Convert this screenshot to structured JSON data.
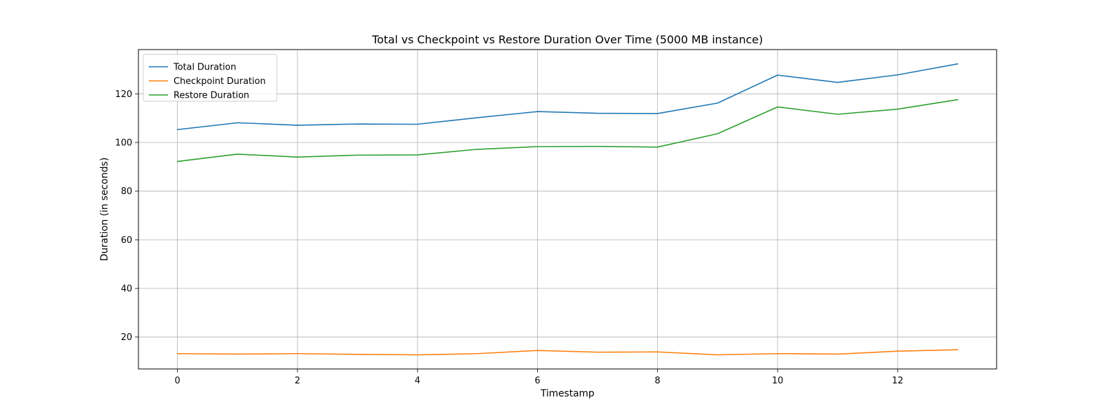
{
  "chart_data": {
    "type": "line",
    "title": "Total vs Checkpoint vs Restore Duration Over Time (5000 MB instance)",
    "xlabel": "Timestamp",
    "ylabel": "Duration (in seconds)",
    "x": [
      0,
      1,
      2,
      3,
      4,
      5,
      6,
      7,
      8,
      9,
      10,
      11,
      12,
      13
    ],
    "xlim": [
      -0.65,
      13.65
    ],
    "ylim": [
      6.9,
      138.2
    ],
    "xticks": [
      0,
      2,
      4,
      6,
      8,
      10,
      12
    ],
    "yticks": [
      20,
      40,
      60,
      80,
      100,
      120
    ],
    "grid": true,
    "legend_position": "top-left",
    "series": [
      {
        "name": "Total Duration",
        "color": "#1f77b4",
        "values": [
          105.3,
          108.1,
          107.1,
          107.6,
          107.5,
          110.2,
          112.7,
          112.0,
          111.9,
          116.2,
          127.7,
          124.7,
          127.8,
          132.3
        ]
      },
      {
        "name": "Checkpoint Duration",
        "color": "#ff7f0e",
        "values": [
          13.2,
          13.0,
          13.2,
          12.9,
          12.7,
          13.2,
          14.5,
          13.8,
          13.9,
          12.7,
          13.2,
          13.0,
          14.2,
          14.8
        ]
      },
      {
        "name": "Restore Duration",
        "color": "#2ca02c",
        "values": [
          92.2,
          95.2,
          94.0,
          94.8,
          94.9,
          97.2,
          98.3,
          98.4,
          98.1,
          103.6,
          114.6,
          111.6,
          113.7,
          117.6
        ]
      }
    ]
  }
}
